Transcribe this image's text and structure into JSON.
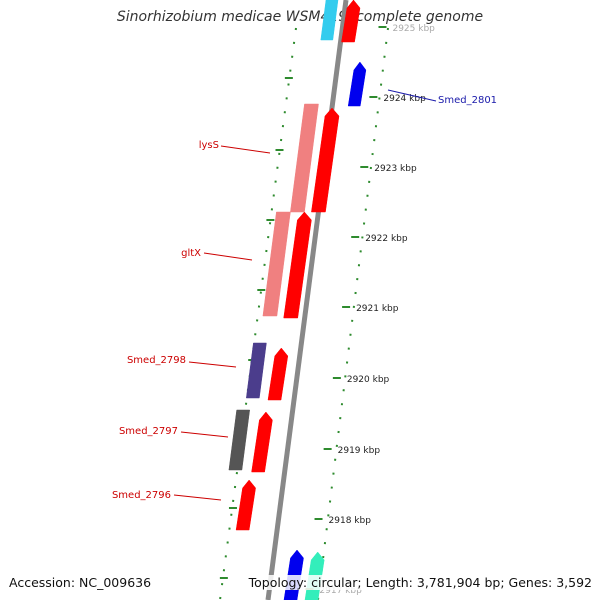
{
  "title": "Sinorhizobium medicae WSM419, complete genome",
  "footer": {
    "accession": "Accession: NC_009636",
    "topology": "Topology: circular; Length: 3,781,904 bp; Genes: 3,592"
  },
  "colors": {
    "backbone": "#888888",
    "dots": "#2e8b2e",
    "label_red": "#cc0000",
    "label_blue": "#1a1aaa",
    "gene_red": "#ff0000",
    "gene_pink": "#f08080",
    "gene_navy": "#4b3d8c",
    "gene_gray": "#555555",
    "gene_blue": "#0000ee",
    "gene_cyan": "#33ccee",
    "gene_teal": "#33eebb"
  },
  "ticks": [
    {
      "label": "2925 kbp"
    },
    {
      "label": "2924 kbp"
    },
    {
      "label": "2923 kbp"
    },
    {
      "label": "2922 kbp"
    },
    {
      "label": "2921 kbp"
    },
    {
      "label": "2920 kbp"
    },
    {
      "label": "2919 kbp"
    },
    {
      "label": "2918 kbp"
    },
    {
      "label": "2917 kbp"
    }
  ],
  "gene_labels": [
    {
      "label": "Smed_2801"
    },
    {
      "label": "lysS"
    },
    {
      "label": "gltX"
    },
    {
      "label": "Smed_2798"
    },
    {
      "label": "Smed_2797"
    },
    {
      "label": "Smed_2796"
    }
  ]
}
